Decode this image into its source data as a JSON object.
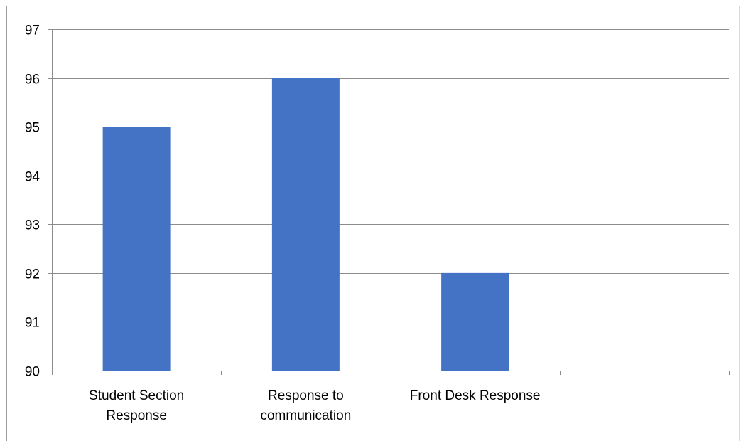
{
  "chart_data": {
    "type": "bar",
    "categories": [
      [
        "Student Section",
        "Response"
      ],
      [
        "Response to",
        "communication"
      ],
      [
        "Front Desk Response"
      ],
      [
        ""
      ]
    ],
    "values": [
      95,
      96,
      92,
      null
    ],
    "ylim": [
      90,
      97
    ],
    "yticks": [
      90,
      91,
      92,
      93,
      94,
      95,
      96,
      97
    ],
    "grid": true,
    "legend": "none",
    "colors": {
      "bar": "#4472c4",
      "grid": "#8c8c8c",
      "axis": "#8c8c8c"
    }
  }
}
